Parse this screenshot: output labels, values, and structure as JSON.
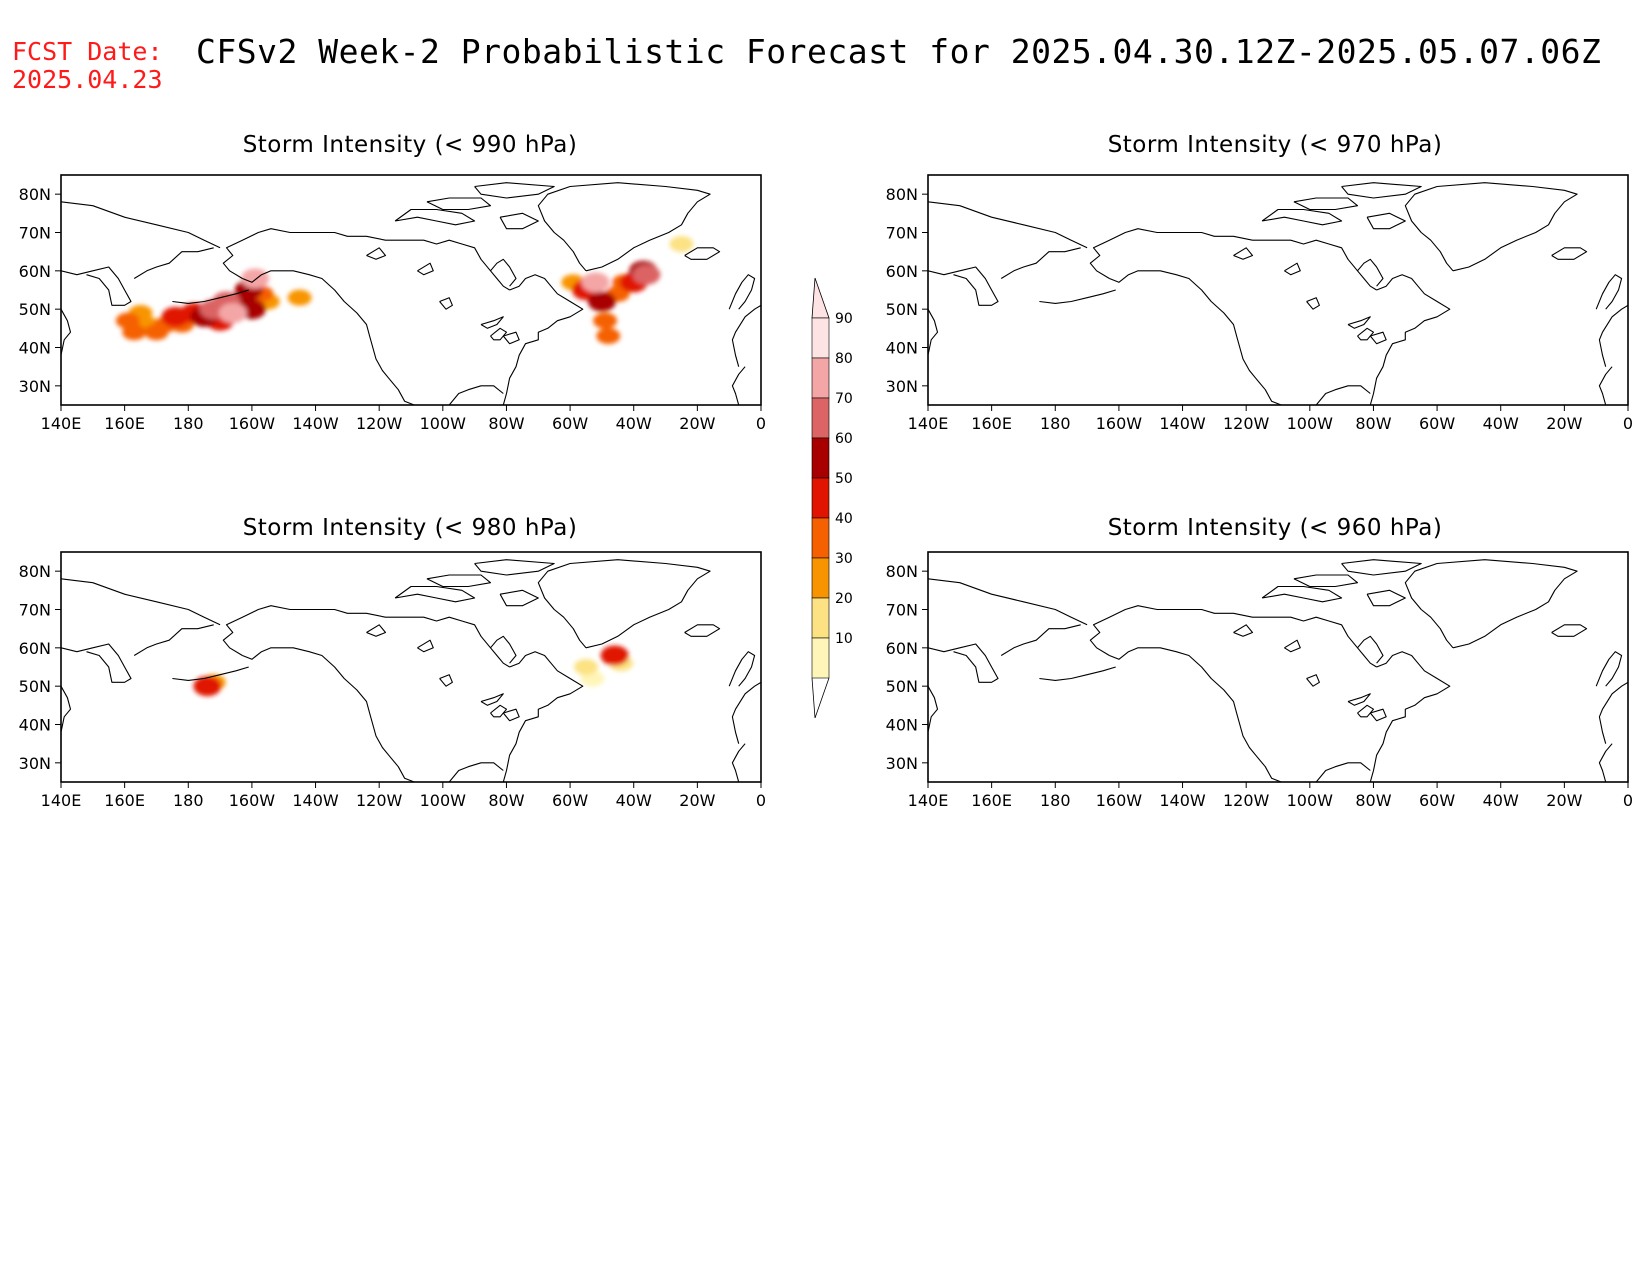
{
  "header": {
    "fcst_label": "FCST Date:",
    "fcst_date": "2025.04.23",
    "title": "CFSv2 Week-2 Probabilistic Forecast for 2025.04.30.12Z-2025.05.07.06Z"
  },
  "axes": {
    "lon_ticks": [
      "140E",
      "160E",
      "180",
      "160W",
      "140W",
      "120W",
      "100W",
      "80W",
      "60W",
      "40W",
      "20W",
      "0"
    ],
    "lat_ticks": [
      "80N",
      "70N",
      "60N",
      "50N",
      "40N",
      "30N"
    ]
  },
  "panels": [
    {
      "title": "Storm Intensity (< 990 hPa)"
    },
    {
      "title": "Storm Intensity (< 970 hPa)"
    },
    {
      "title": "Storm Intensity (< 980 hPa)"
    },
    {
      "title": "Storm Intensity (< 960 hPa)"
    }
  ],
  "colorbar": {
    "labels": [
      "90",
      "80",
      "70",
      "60",
      "50",
      "40",
      "30",
      "20",
      "10"
    ],
    "colors": [
      "#fde3e3",
      "#f4a6a6",
      "#dc6464",
      "#a80000",
      "#e01400",
      "#f56100",
      "#f89400",
      "#fce283",
      "#fff5b8"
    ]
  },
  "colors": {
    "fcst_text": "#ff1a1a",
    "coast": "#000000"
  },
  "map_data": {
    "lon_range": [
      140,
      360
    ],
    "lat_range": [
      25,
      85
    ],
    "probability_blobs": [
      {
        "panel": 0,
        "cells": [
          [
            161,
            47,
            45
          ],
          [
            163,
            44,
            40
          ],
          [
            165,
            49,
            30
          ],
          [
            167,
            46,
            35
          ],
          [
            170,
            44,
            40
          ],
          [
            173,
            46,
            45
          ],
          [
            176,
            48,
            50
          ],
          [
            178,
            46,
            40
          ],
          [
            182,
            49,
            55
          ],
          [
            185,
            48,
            60
          ],
          [
            188,
            50,
            70
          ],
          [
            190,
            47,
            55
          ],
          [
            192,
            52,
            75
          ],
          [
            194,
            49,
            85
          ],
          [
            197,
            52,
            60
          ],
          [
            199,
            55,
            65
          ],
          [
            201,
            58,
            80
          ],
          [
            200,
            50,
            60
          ],
          [
            203,
            54,
            40
          ],
          [
            205,
            52,
            30
          ],
          [
            215,
            53,
            30
          ]
        ]
      },
      {
        "panel": 0,
        "cells": [
          [
            301,
            57,
            35
          ],
          [
            305,
            55,
            55
          ],
          [
            308,
            57,
            80
          ],
          [
            310,
            52,
            60
          ],
          [
            311,
            47,
            45
          ],
          [
            312,
            43,
            40
          ],
          [
            315,
            54,
            45
          ],
          [
            317,
            57,
            40
          ],
          [
            320,
            57,
            50
          ],
          [
            323,
            60,
            65
          ],
          [
            324,
            59,
            70
          ],
          [
            335,
            67,
            20
          ]
        ]
      },
      {
        "panel": 2,
        "cells": [
          [
            186,
            50,
            55
          ],
          [
            188,
            51,
            30
          ],
          [
            305,
            55,
            20
          ],
          [
            307,
            52,
            15
          ],
          [
            314,
            58,
            50
          ],
          [
            316,
            56,
            20
          ]
        ]
      }
    ]
  }
}
